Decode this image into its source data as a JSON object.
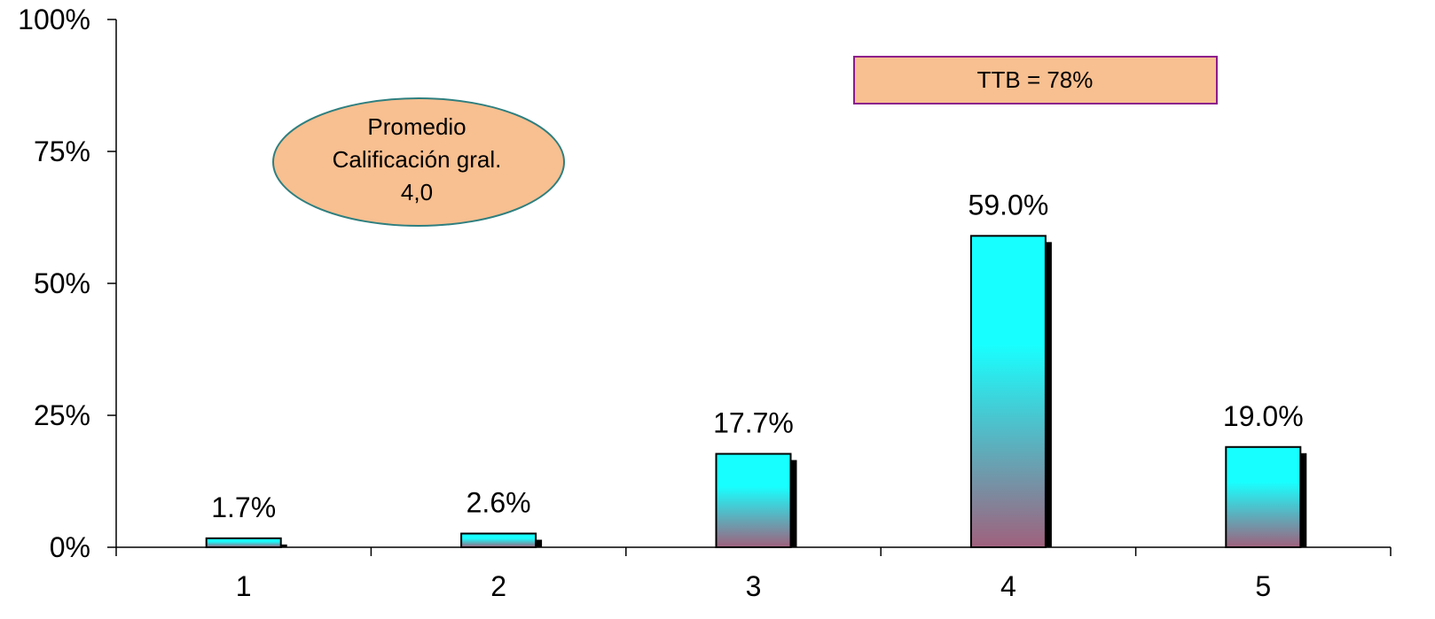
{
  "chart_data": {
    "type": "bar",
    "categories": [
      "1",
      "2",
      "3",
      "4",
      "5"
    ],
    "values": [
      1.7,
      2.6,
      17.7,
      59.0,
      19.0
    ],
    "data_labels": [
      "1.7%",
      "2.6%",
      "17.7%",
      "59.0%",
      "19.0%"
    ],
    "ylim": [
      0,
      100
    ],
    "y_ticks": [
      {
        "value": 0,
        "label": "0%"
      },
      {
        "value": 25,
        "label": "25%"
      },
      {
        "value": 50,
        "label": "50%"
      },
      {
        "value": 75,
        "label": "75%"
      },
      {
        "value": 100,
        "label": "100%"
      }
    ],
    "grid": false,
    "bar_gradient": {
      "top": "#18FFFF",
      "bottom": "#A0607C"
    },
    "annotations": {
      "ttb": "TTB = 78%",
      "promedio": [
        "Promedio",
        "Calificación gral.",
        "4,0"
      ]
    },
    "colors": {
      "ttb_fill": "#F8BF90",
      "ttb_border": "#8B1A8B",
      "ellipse_fill": "#F8BF90",
      "ellipse_border": "#2E7F7F"
    }
  }
}
